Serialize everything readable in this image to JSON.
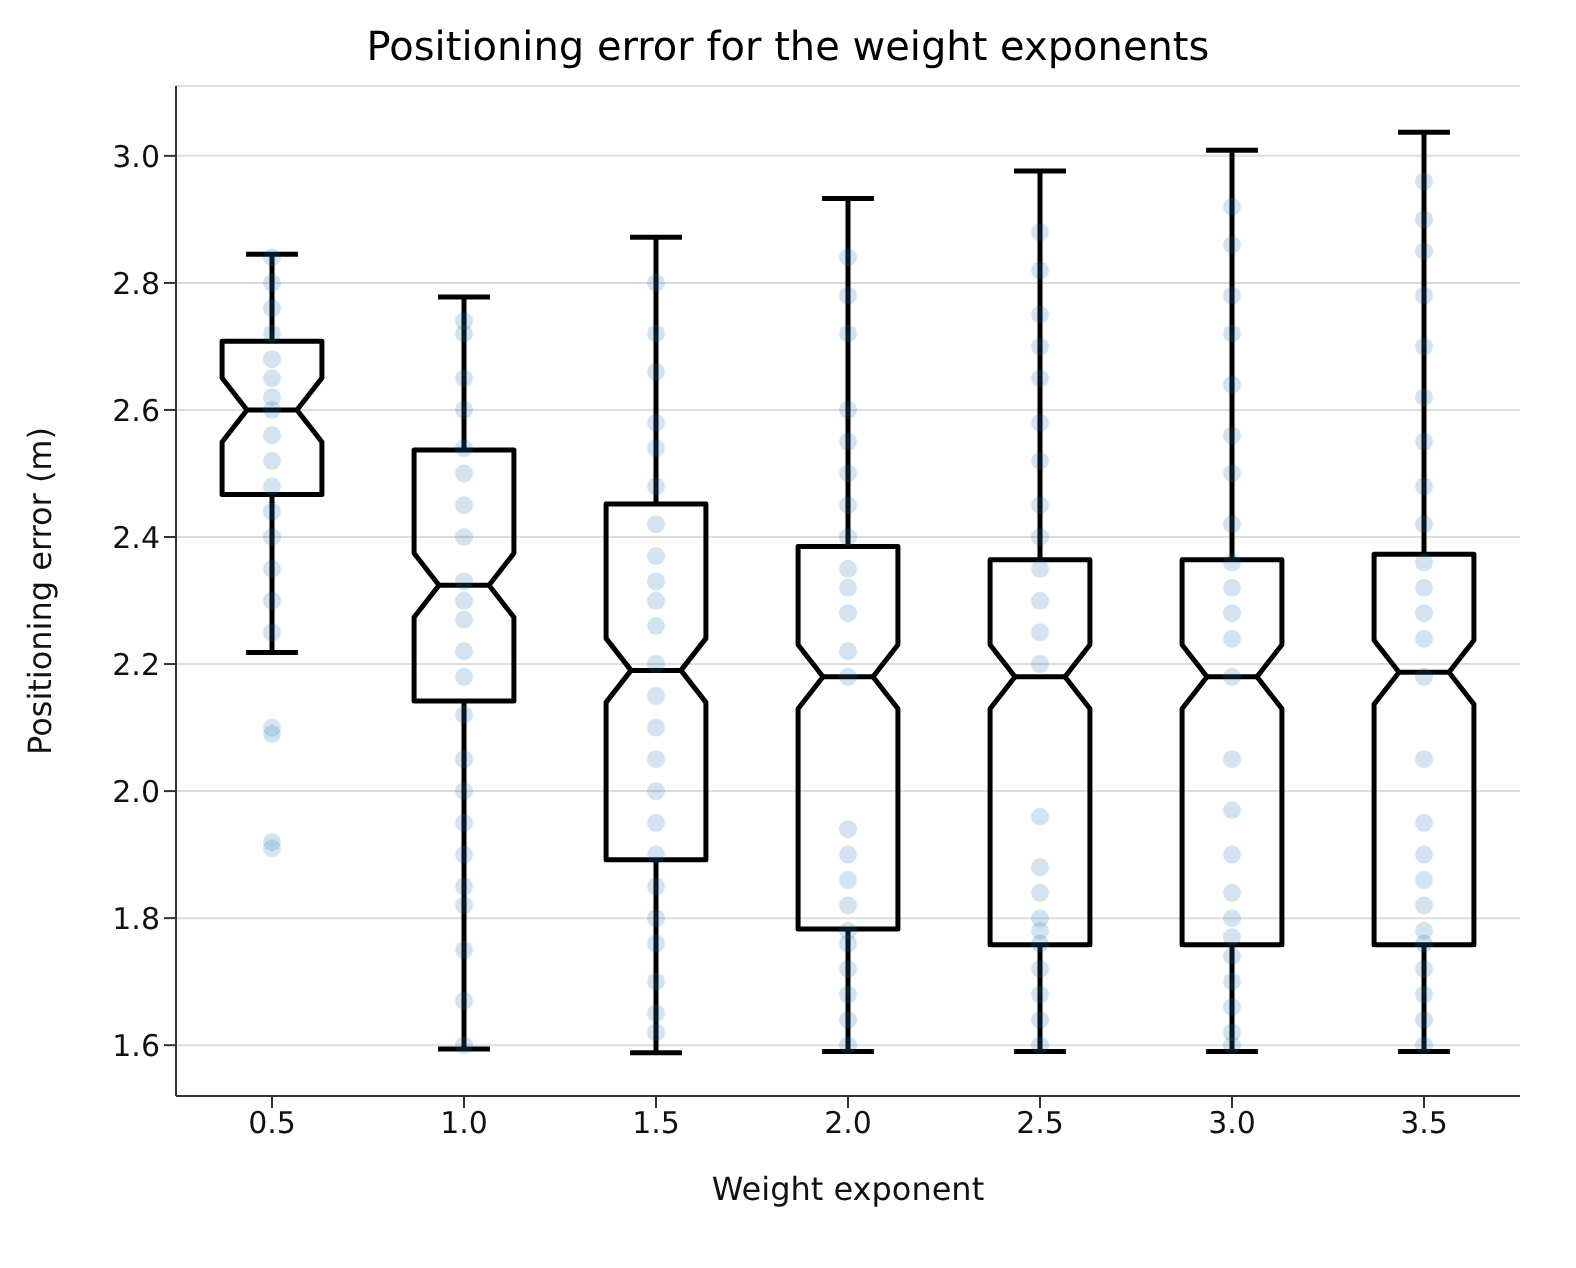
{
  "chart_data": {
    "type": "box",
    "title": "Positioning error for the weight exponents",
    "xlabel": "Weight exponent",
    "ylabel": "Positioning error (m)",
    "categories": [
      "0.5",
      "1.0",
      "1.5",
      "2.0",
      "2.5",
      "3.0",
      "3.5"
    ],
    "boxes": [
      {
        "low": 2.218,
        "q1": 2.467,
        "median": 2.6,
        "q3": 2.708,
        "high": 2.845
      },
      {
        "low": 1.594,
        "q1": 2.142,
        "median": 2.324,
        "q3": 2.537,
        "high": 2.778
      },
      {
        "low": 1.588,
        "q1": 1.892,
        "median": 2.19,
        "q3": 2.452,
        "high": 2.872
      },
      {
        "low": 1.59,
        "q1": 1.783,
        "median": 2.18,
        "q3": 2.385,
        "high": 2.933
      },
      {
        "low": 1.59,
        "q1": 1.758,
        "median": 2.18,
        "q3": 2.364,
        "high": 2.976
      },
      {
        "low": 1.59,
        "q1": 1.758,
        "median": 2.18,
        "q3": 2.364,
        "high": 3.009
      },
      {
        "low": 1.59,
        "q1": 1.758,
        "median": 2.187,
        "q3": 2.373,
        "high": 3.037
      }
    ],
    "series": [
      {
        "type": "scatter",
        "color": "#1f77b4",
        "x": [
          "0.5",
          "0.5",
          "0.5",
          "0.5",
          "0.5",
          "0.5",
          "0.5",
          "0.5",
          "0.5",
          "0.5",
          "0.5",
          "0.5",
          "0.5",
          "0.5",
          "0.5",
          "0.5",
          "0.5",
          "0.5",
          "0.5",
          "0.5",
          "1.0",
          "1.0",
          "1.0",
          "1.0",
          "1.0",
          "1.0",
          "1.0",
          "1.0",
          "1.0",
          "1.0",
          "1.0",
          "1.0",
          "1.0",
          "1.0",
          "1.0",
          "1.0",
          "1.0",
          "1.0",
          "1.0",
          "1.0",
          "1.0",
          "1.0",
          "1.0",
          "1.5",
          "1.5",
          "1.5",
          "1.5",
          "1.5",
          "1.5",
          "1.5",
          "1.5",
          "1.5",
          "1.5",
          "1.5",
          "1.5",
          "1.5",
          "1.5",
          "1.5",
          "1.5",
          "1.5",
          "1.5",
          "1.5",
          "1.5",
          "1.5",
          "1.5",
          "1.5",
          "1.5",
          "2.0",
          "2.0",
          "2.0",
          "2.0",
          "2.0",
          "2.0",
          "2.0",
          "2.0",
          "2.0",
          "2.0",
          "2.0",
          "2.0",
          "2.0",
          "2.0",
          "2.0",
          "2.0",
          "2.0",
          "2.0",
          "2.0",
          "2.0",
          "2.0",
          "2.0",
          "2.0",
          "2.5",
          "2.5",
          "2.5",
          "2.5",
          "2.5",
          "2.5",
          "2.5",
          "2.5",
          "2.5",
          "2.5",
          "2.5",
          "2.5",
          "2.5",
          "2.5",
          "2.5",
          "2.5",
          "2.5",
          "2.5",
          "2.5",
          "2.5",
          "2.5",
          "2.5",
          "2.5",
          "3.0",
          "3.0",
          "3.0",
          "3.0",
          "3.0",
          "3.0",
          "3.0",
          "3.0",
          "3.0",
          "3.0",
          "3.0",
          "3.0",
          "3.0",
          "3.0",
          "3.0",
          "3.0",
          "3.0",
          "3.0",
          "3.0",
          "3.0",
          "3.0",
          "3.0",
          "3.0",
          "3.0",
          "3.5",
          "3.5",
          "3.5",
          "3.5",
          "3.5",
          "3.5",
          "3.5",
          "3.5",
          "3.5",
          "3.5",
          "3.5",
          "3.5",
          "3.5",
          "3.5",
          "3.5",
          "3.5",
          "3.5",
          "3.5",
          "3.5",
          "3.5",
          "3.5",
          "3.5",
          "3.5",
          "3.5",
          "3.5"
        ],
        "values": [
          2.84,
          2.8,
          2.76,
          2.72,
          2.68,
          2.65,
          2.62,
          2.6,
          2.56,
          2.52,
          2.48,
          2.44,
          2.4,
          2.35,
          2.3,
          2.25,
          2.09,
          2.1,
          1.92,
          1.91,
          2.74,
          2.72,
          2.65,
          2.6,
          2.54,
          2.5,
          2.45,
          2.4,
          2.33,
          2.3,
          2.27,
          2.22,
          2.18,
          2.12,
          2.05,
          2.0,
          1.95,
          1.9,
          1.85,
          1.82,
          1.75,
          1.67,
          1.6,
          2.8,
          2.72,
          2.66,
          2.58,
          2.54,
          2.48,
          2.42,
          2.37,
          2.33,
          2.3,
          2.26,
          2.2,
          2.15,
          2.1,
          2.05,
          2.0,
          1.95,
          1.9,
          1.85,
          1.8,
          1.76,
          1.7,
          1.65,
          1.62,
          2.84,
          2.78,
          2.72,
          2.6,
          2.55,
          2.5,
          2.45,
          2.4,
          2.35,
          2.32,
          2.28,
          2.22,
          2.18,
          1.94,
          1.9,
          1.86,
          1.82,
          1.78,
          1.76,
          1.72,
          1.68,
          1.64,
          1.6,
          2.88,
          2.82,
          2.75,
          2.7,
          2.65,
          2.58,
          2.52,
          2.45,
          2.4,
          2.35,
          2.3,
          2.25,
          2.2,
          1.96,
          1.88,
          1.84,
          1.8,
          1.78,
          1.76,
          1.72,
          1.68,
          1.64,
          1.6,
          2.92,
          2.86,
          2.78,
          2.72,
          2.64,
          2.56,
          2.5,
          2.42,
          2.36,
          2.32,
          2.28,
          2.24,
          2.18,
          2.05,
          1.97,
          1.9,
          1.84,
          1.8,
          1.77,
          1.74,
          1.7,
          1.66,
          1.62,
          1.6,
          2.96,
          2.9,
          2.85,
          2.78,
          2.7,
          2.62,
          2.55,
          2.48,
          2.42,
          2.36,
          2.32,
          2.28,
          2.24,
          2.18,
          2.05,
          1.95,
          1.9,
          1.86,
          1.82,
          1.78,
          1.76,
          1.72,
          1.68,
          1.64,
          1.6
        ]
      }
    ],
    "ylim": [
      1.52,
      3.11
    ],
    "yticks": [
      1.6,
      1.8,
      {
        "value": 2,
        "label": "2.0"
      },
      2.2,
      2.4,
      2.6,
      2.8,
      {
        "value": 3,
        "label": "3.0"
      }
    ],
    "grid": "y"
  }
}
